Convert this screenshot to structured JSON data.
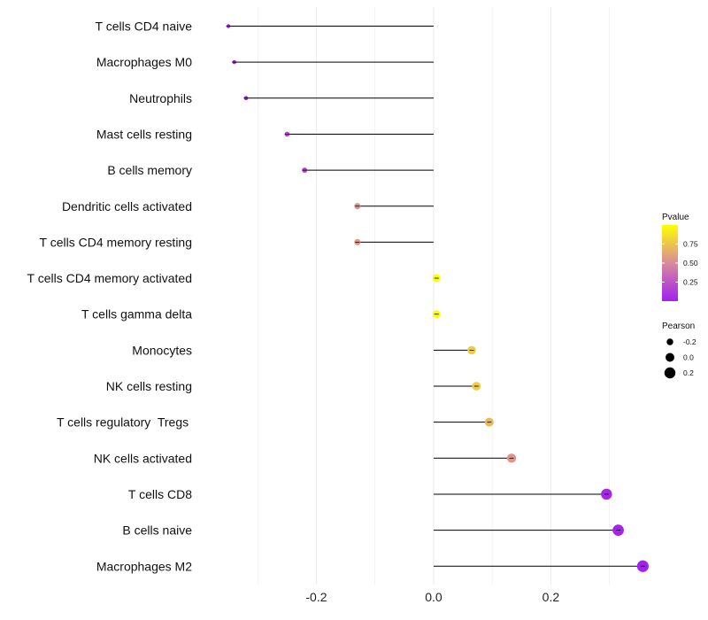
{
  "chart_data": {
    "type": "lollipop",
    "title": "",
    "xlabel": "",
    "ylabel": "",
    "xlim": [
      -0.4,
      0.37
    ],
    "x_ticks": [
      -0.2,
      0.0,
      0.2
    ],
    "x_tick_labels": [
      "-0.2",
      "0.0",
      "0.2"
    ],
    "baseline": 0.0,
    "grid": true,
    "categories": [
      "T cells CD4 naive",
      "Macrophages M0",
      "Neutrophils",
      "Mast cells resting",
      "B cells memory",
      "Dendritic cells activated",
      "T cells CD4 memory resting",
      "T cells CD4 memory activated",
      "T cells gamma delta",
      "Monocytes",
      "NK cells resting",
      "T cells regulatory  Tregs ",
      "NK cells activated",
      "T cells CD8",
      "B cells naive",
      "Macrophages M2"
    ],
    "series": [
      {
        "name": "Pearson",
        "values": [
          -0.35,
          -0.34,
          -0.32,
          -0.25,
          -0.22,
          -0.13,
          -0.13,
          0.005,
          0.005,
          0.065,
          0.073,
          0.095,
          0.133,
          0.295,
          0.315,
          0.357
        ]
      },
      {
        "name": "Pvalue",
        "values": [
          0.01,
          0.02,
          0.04,
          0.18,
          0.18,
          0.55,
          0.55,
          0.99,
          0.99,
          0.78,
          0.78,
          0.7,
          0.55,
          0.04,
          0.02,
          0.01
        ]
      }
    ],
    "legends": [
      {
        "title": "Pvalue",
        "type": "colorbar",
        "placement": "right",
        "range": [
          0.0,
          1.0
        ],
        "ticks": [
          0.25,
          0.5,
          0.75
        ],
        "tick_labels": [
          "0.25",
          "0.50",
          "0.75"
        ],
        "low_color": "#a020f0",
        "mid_color": "#d98a9c",
        "high_color": "#ffff00"
      },
      {
        "title": "Pearson",
        "type": "size",
        "placement": "right",
        "values": [
          -0.2,
          0.0,
          0.2
        ],
        "labels": [
          "-0.2",
          "0.0",
          "0.2"
        ]
      }
    ]
  },
  "colors": {
    "low": "#a020f0",
    "mid": "#d98a9c",
    "high": "#ffff00",
    "segment": "#000000",
    "grid": "#ebebeb"
  }
}
